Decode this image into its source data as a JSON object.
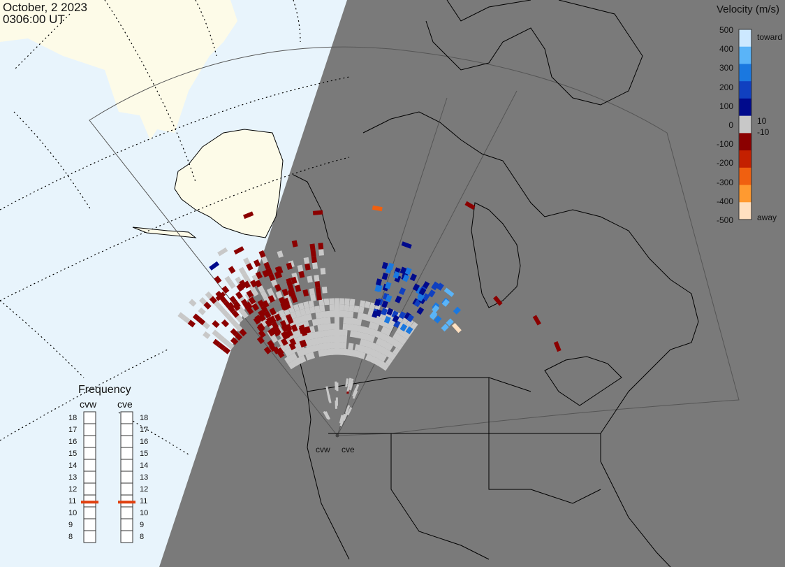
{
  "header": {
    "date": "October, 2 2023",
    "time": "0306:00 UT"
  },
  "colorbar": {
    "title": "Velocity (m/s)",
    "ticks": [
      "500",
      "400",
      "300",
      "200",
      "100",
      "0",
      "-100",
      "-200",
      "-300",
      "-400",
      "-500"
    ],
    "toward_label": "toward",
    "away_label": "away",
    "inner_pos_label": "10",
    "inner_neg_label": "-10",
    "colors": [
      "#ffe0c0",
      "#ff9a30",
      "#f06010",
      "#c42000",
      "#8b0000",
      "#c8c8c8",
      "#000a8c",
      "#1040c0",
      "#1a78e0",
      "#5ab4f8",
      "#cce8ff"
    ]
  },
  "frequency": {
    "title": "Frequency",
    "stations": [
      "cvw",
      "cve"
    ],
    "levels": [
      "18",
      "17",
      "16",
      "15",
      "14",
      "13",
      "12",
      "11",
      "10",
      "9",
      "8"
    ],
    "cvw_mhz": 10.9,
    "cve_mhz": 10.9,
    "marker_color": "#e04010"
  },
  "radars": [
    "cvw",
    "cve"
  ],
  "map_colors": {
    "night": "#7a7a7a",
    "day_ocean": "#e8f4fc",
    "day_land": "#fdfbe8",
    "ground_scatter": "#c8c8c8"
  }
}
